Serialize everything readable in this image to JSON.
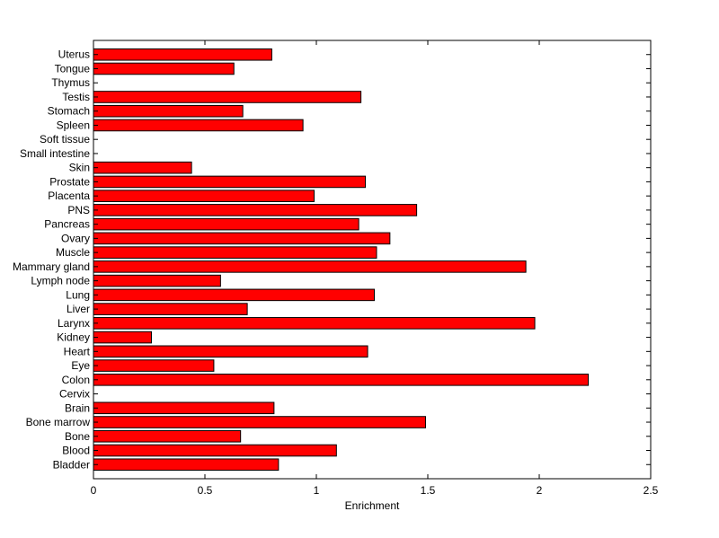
{
  "chart_data": {
    "type": "bar",
    "orientation": "horizontal",
    "title": "",
    "xlabel": "Enrichment",
    "ylabel": "",
    "xlim": [
      0,
      2.5
    ],
    "xticks": [
      0,
      0.5,
      1,
      1.5,
      2,
      2.5
    ],
    "xtick_labels": [
      "0",
      "0.5",
      "1",
      "1.5",
      "2",
      "2.5"
    ],
    "grid": false,
    "bar_color": "#ff0000",
    "categories": [
      "Bladder",
      "Blood",
      "Bone",
      "Bone marrow",
      "Brain",
      "Cervix",
      "Colon",
      "Eye",
      "Heart",
      "Kidney",
      "Larynx",
      "Liver",
      "Lung",
      "Lymph node",
      "Mammary gland",
      "Muscle",
      "Ovary",
      "Pancreas",
      "PNS",
      "Placenta",
      "Prostate",
      "Skin",
      "Small intestine",
      "Soft tissue",
      "Spleen",
      "Stomach",
      "Testis",
      "Thymus",
      "Tongue",
      "Uterus"
    ],
    "values": [
      0.83,
      1.09,
      0.66,
      1.49,
      0.81,
      0,
      2.22,
      0.54,
      1.23,
      0.26,
      1.98,
      0.69,
      1.26,
      0.57,
      1.94,
      1.27,
      1.33,
      1.19,
      1.45,
      0.99,
      1.22,
      0.44,
      0,
      0,
      0.94,
      0.67,
      1.2,
      0,
      0.63,
      0.8
    ]
  }
}
